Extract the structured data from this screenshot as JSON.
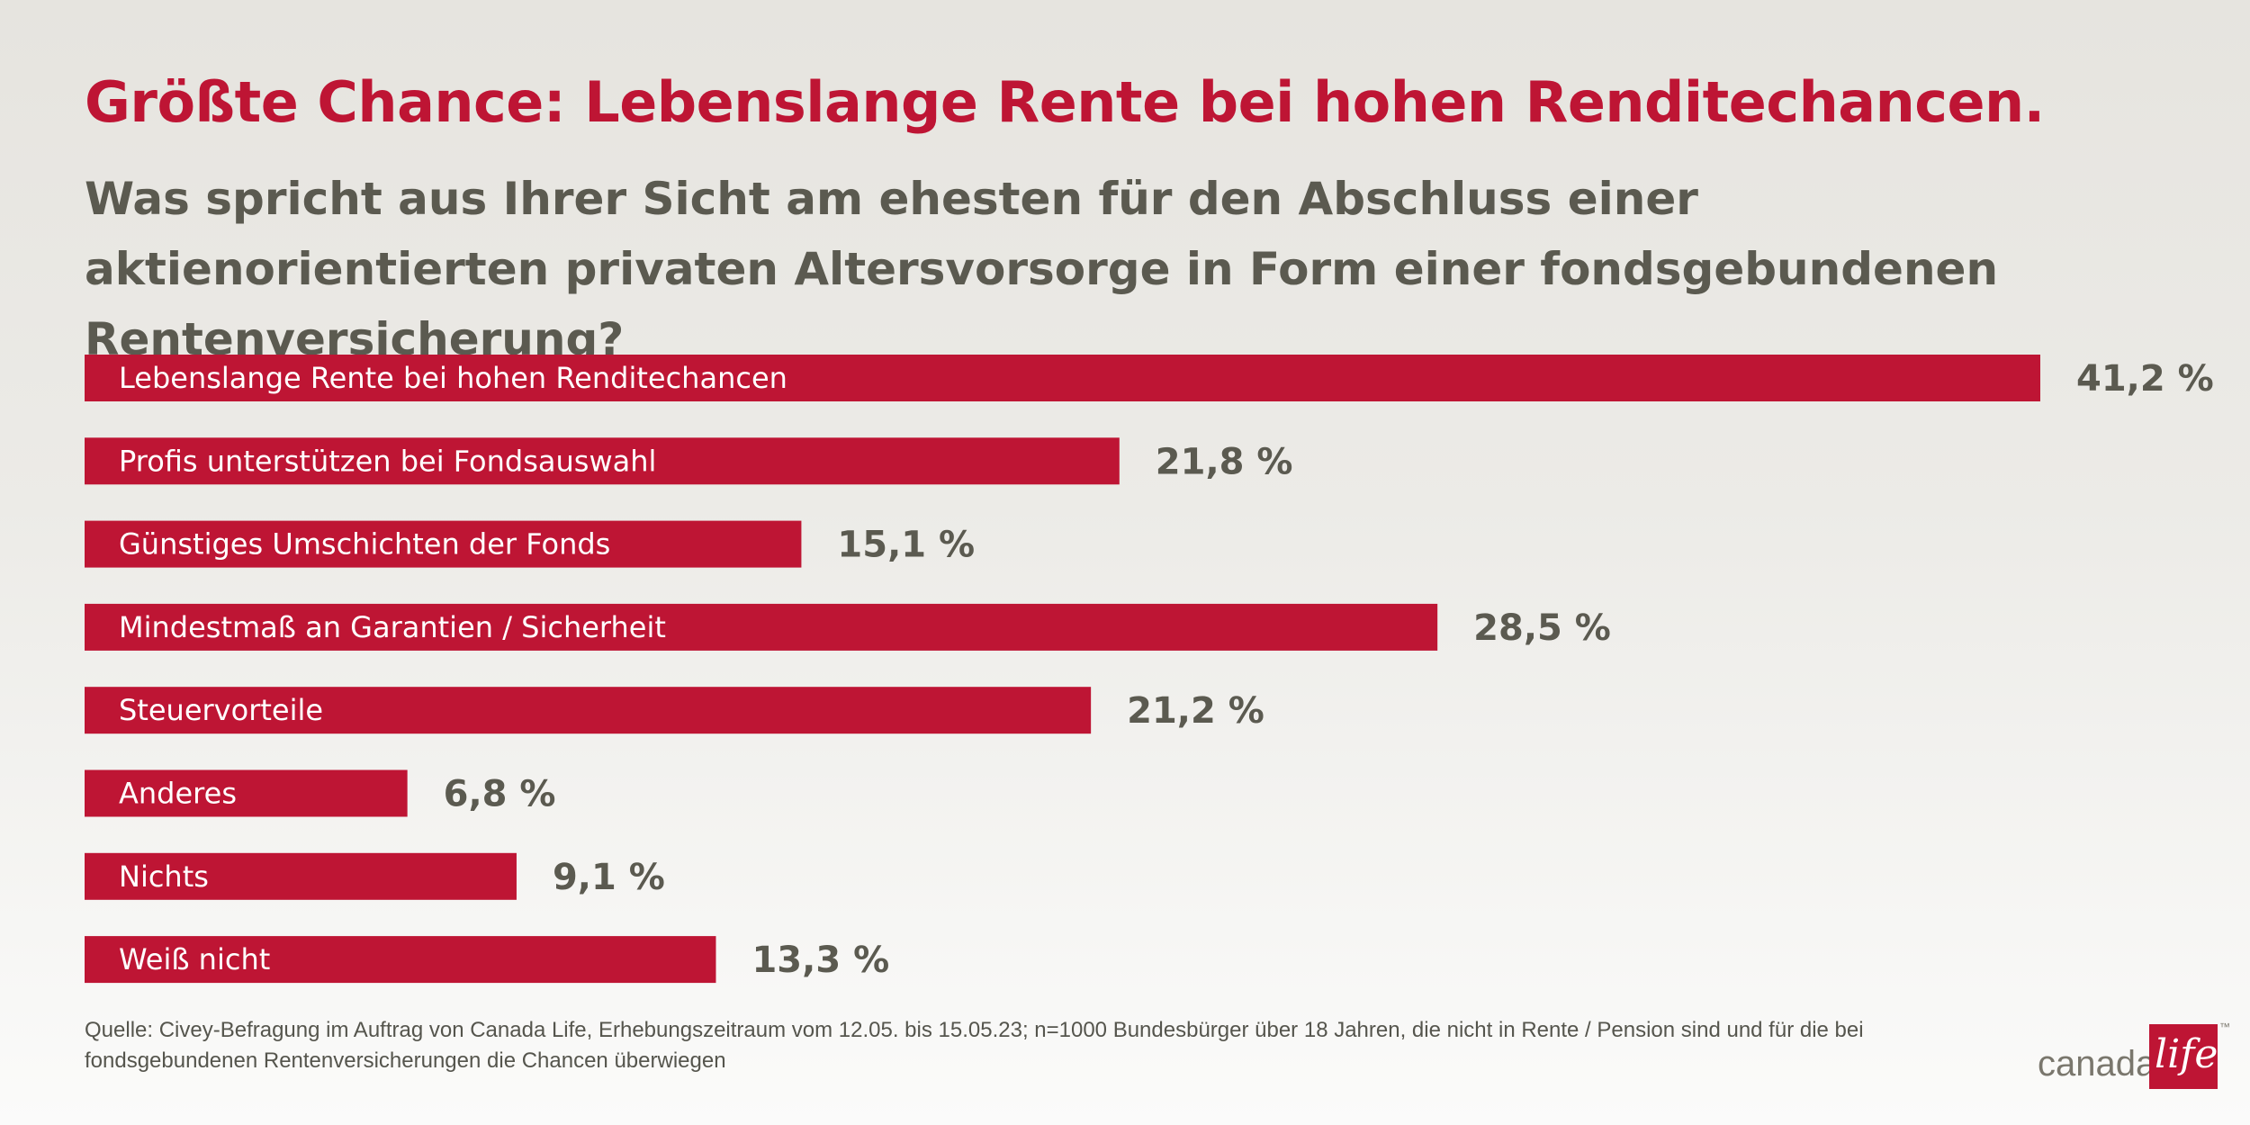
{
  "chart_data": {
    "type": "bar",
    "orientation": "horizontal",
    "title": "Größte Chance: Lebenslange Rente bei hohen Renditechancen.",
    "subtitle": "Was spricht aus Ihrer Sicht am ehesten für den Abschluss einer aktienorientierten privaten Altersvorsorge in Form einer fondsgebundenen Rentenversicherung?",
    "categories": [
      "Lebenslange Rente bei hohen Renditechancen",
      "Profis unterstützen bei Fondsauswahl",
      "Günstiges Umschichten der Fonds",
      "Mindestmaß an Garantien / Sicherheit",
      "Steuervorteile",
      "Anderes",
      "Nichts",
      "Weiß nicht"
    ],
    "values": [
      41.2,
      21.8,
      15.1,
      28.5,
      21.2,
      6.8,
      9.1,
      13.3
    ],
    "value_labels": [
      "41,2  %",
      "21,8 %",
      "15,1 %",
      "28,5 %",
      "21,2 %",
      "6,8 %",
      "9,1 %",
      "13,3 %"
    ],
    "unit": "%",
    "xlim": [
      0,
      41.2
    ],
    "grid": false,
    "bar_color": "#be1534",
    "title_color": "#be1534"
  },
  "source": "Quelle: Civey-Befragung im Auftrag von Canada Life, Erhebungszeitraum vom 12.05. bis 15.05.23; n=1000 Bundesbürger über 18 Jahren, die nicht in Rente / Pension sind und für die bei fondsgebundenen Rentenversicherungen die Chancen überwiegen",
  "logo": {
    "text": "canada",
    "box_text": "life",
    "trademark": "™"
  }
}
